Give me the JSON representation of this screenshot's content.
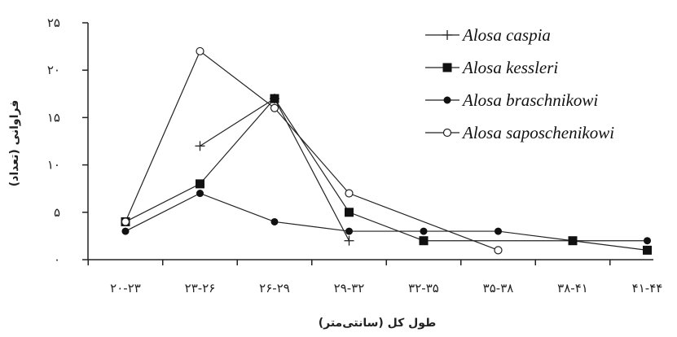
{
  "chart_data": {
    "type": "line",
    "title": "",
    "xlabel": "طول کل (سانتی‌متر)",
    "ylabel": "فراوانی (تعداد)",
    "categories": [
      "۲۰-۲۳",
      "۲۳-۲۶",
      "۲۶-۲۹",
      "۲۹-۳۲",
      "۳۲-۳۵",
      "۳۵-۳۸",
      "۳۸-۴۱",
      "۴۱-۴۴"
    ],
    "ylim": [
      0,
      25
    ],
    "yticks": [
      0,
      5,
      10,
      15,
      20,
      25
    ],
    "ytick_labels": [
      "۰",
      "۵",
      "۱۰",
      "۱۵",
      "۲۰",
      "۲۵"
    ],
    "grid": false,
    "legend_position": "top-right",
    "series": [
      {
        "name": "Alosa caspia",
        "marker": "plus",
        "color": "#222222",
        "points": [
          {
            "x": "۲۳-۲۶",
            "y": 12
          },
          {
            "x": "۲۶-۲۹",
            "y": 17
          },
          {
            "x": "۲۹-۳۲",
            "y": 2
          }
        ]
      },
      {
        "name": "Alosa kessleri",
        "marker": "filled-square",
        "color": "#222222",
        "points": [
          {
            "x": "۲۰-۲۳",
            "y": 4
          },
          {
            "x": "۲۳-۲۶",
            "y": 8
          },
          {
            "x": "۲۶-۲۹",
            "y": 17
          },
          {
            "x": "۲۹-۳۲",
            "y": 5
          },
          {
            "x": "۳۲-۳۵",
            "y": 2
          },
          {
            "x": "۳۸-۴۱",
            "y": 2
          },
          {
            "x": "۴۱-۴۴",
            "y": 1
          }
        ]
      },
      {
        "name": "Alosa braschnikowi",
        "marker": "filled-circle",
        "color": "#222222",
        "points": [
          {
            "x": "۲۰-۲۳",
            "y": 3
          },
          {
            "x": "۲۳-۲۶",
            "y": 7
          },
          {
            "x": "۲۶-۲۹",
            "y": 4
          },
          {
            "x": "۲۹-۳۲",
            "y": 3
          },
          {
            "x": "۳۲-۳۵",
            "y": 3
          },
          {
            "x": "۳۵-۳۸",
            "y": 3
          },
          {
            "x": "۳۸-۴۱",
            "y": 2
          },
          {
            "x": "۴۱-۴۴",
            "y": 2
          }
        ]
      },
      {
        "name": "Alosa saposchenikowi",
        "marker": "open-circle",
        "color": "#222222",
        "points": [
          {
            "x": "۲۰-۲۳",
            "y": 4
          },
          {
            "x": "۲۳-۲۶",
            "y": 22
          },
          {
            "x": "۲۶-۲۹",
            "y": 16
          },
          {
            "x": "۲۹-۳۲",
            "y": 7
          },
          {
            "x": "۳۵-۳۸",
            "y": 1
          }
        ]
      }
    ]
  }
}
